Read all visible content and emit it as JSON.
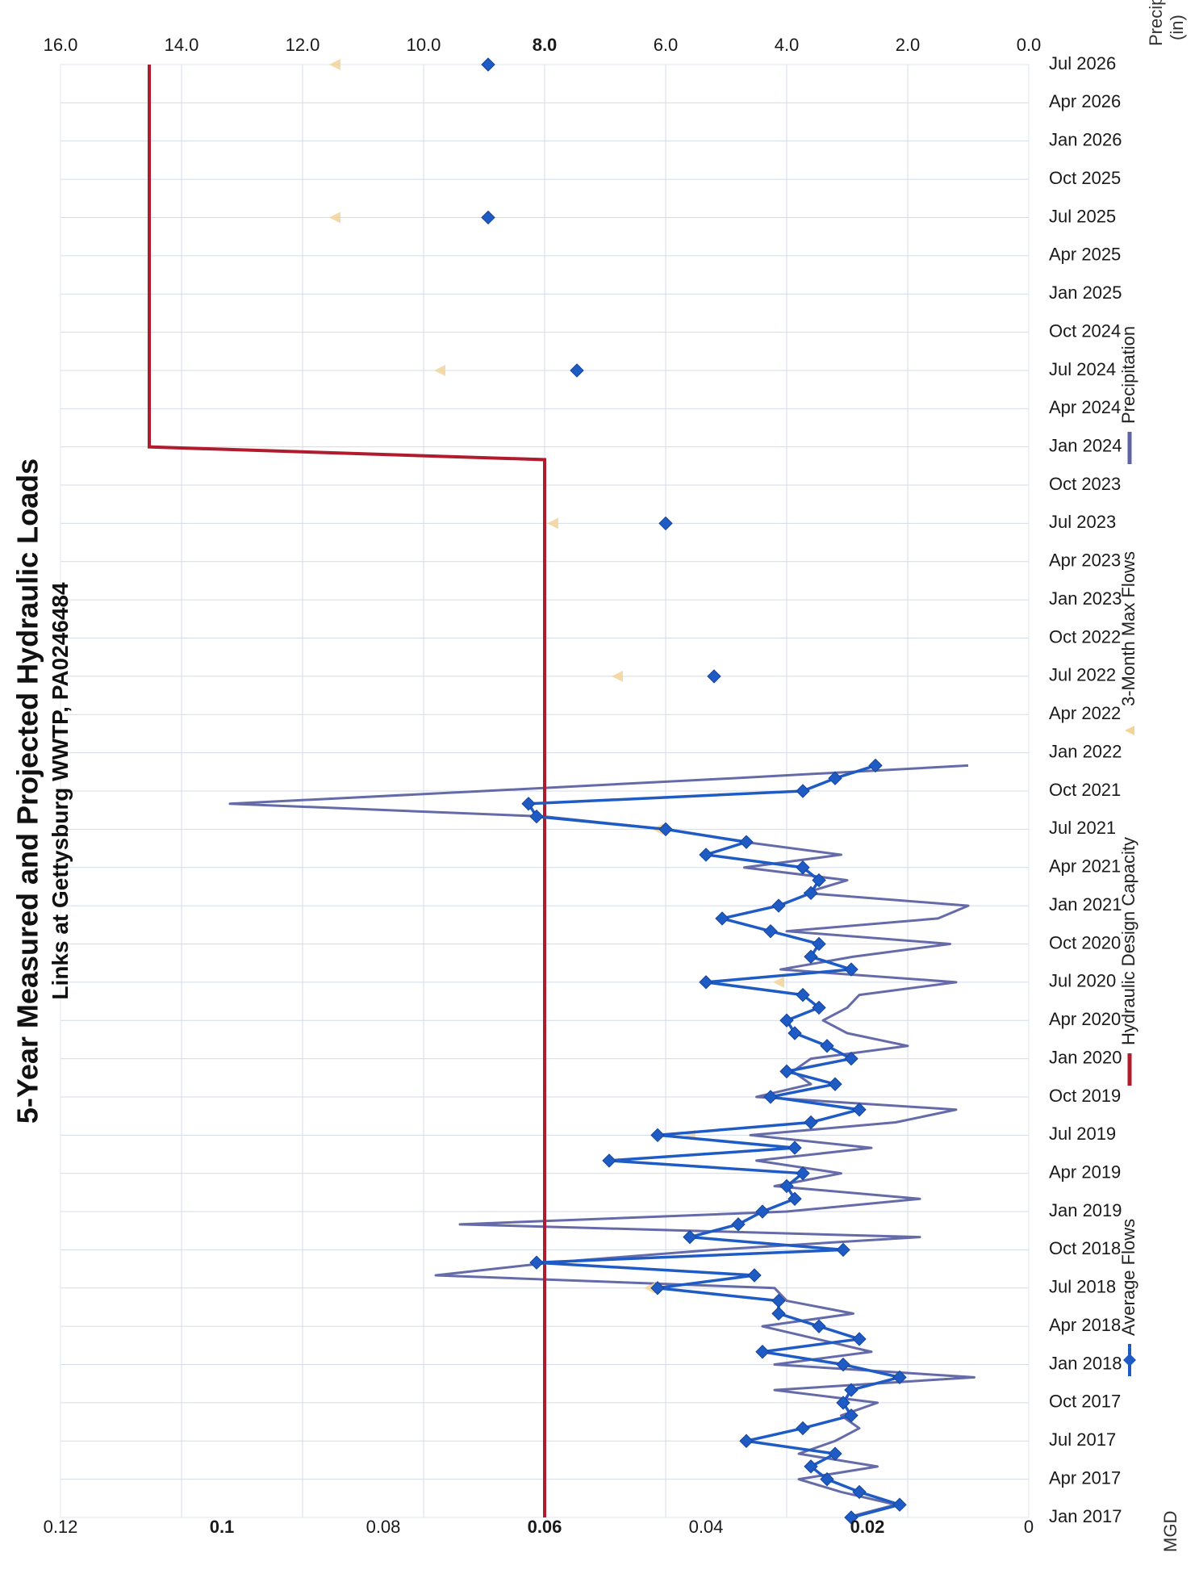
{
  "chart_data": {
    "type": "line",
    "title": "5-Year Measured and Projected Hydraulic Loads",
    "subtitle": "Links at Gettysburg WWTP, PA0246484",
    "orientation": "rotated 90° counter-clockwise",
    "x_axis": {
      "type": "date",
      "ticks": [
        "Jan 2017",
        "Apr 2017",
        "Jul 2017",
        "Oct 2017",
        "Jan 2018",
        "Apr 2018",
        "Jul 2018",
        "Oct 2018",
        "Jan 2019",
        "Apr 2019",
        "Jul 2019",
        "Oct 2019",
        "Jan 2020",
        "Apr 2020",
        "Jul 2020",
        "Oct 2020",
        "Jan 2021",
        "Apr 2021",
        "Jul 2021",
        "Oct 2021",
        "Jan 2022",
        "Apr 2022",
        "Jul 2022",
        "Oct 2022",
        "Jan 2023",
        "Apr 2023",
        "Jul 2023",
        "Oct 2023",
        "Jan 2024",
        "Apr 2024",
        "Jul 2024",
        "Oct 2024",
        "Jan 2025",
        "Apr 2025",
        "Jul 2025",
        "Oct 2025",
        "Jan 2026",
        "Apr 2026",
        "Jul 2026"
      ]
    },
    "y_axis_left": {
      "label": "MGD",
      "range": [
        0,
        0.12
      ],
      "ticks": [
        "0",
        "0.02",
        "0.04",
        "0.06",
        "0.08",
        "0.1",
        "0.12"
      ]
    },
    "y_axis_right": {
      "label_line1": "Precip",
      "label_line2": "(in)",
      "range": [
        0,
        16
      ],
      "ticks": [
        "0.0",
        "2.0",
        "4.0",
        "6.0",
        "8.0",
        "10.0",
        "12.0",
        "14.0",
        "16.0"
      ]
    },
    "grid": true,
    "legend_position": "right",
    "series": [
      {
        "name": "Average Flows",
        "color": "#1f5bc4",
        "marker": "diamond",
        "axis": "left",
        "x": [
          "2017-01",
          "2017-02",
          "2017-03",
          "2017-04",
          "2017-05",
          "2017-06",
          "2017-07",
          "2017-08",
          "2017-09",
          "2017-10",
          "2017-11",
          "2017-12",
          "2018-01",
          "2018-02",
          "2018-03",
          "2018-04",
          "2018-05",
          "2018-06",
          "2018-07",
          "2018-08",
          "2018-09",
          "2018-10",
          "2018-11",
          "2018-12",
          "2019-01",
          "2019-02",
          "2019-03",
          "2019-04",
          "2019-05",
          "2019-06",
          "2019-07",
          "2019-08",
          "2019-09",
          "2019-10",
          "2019-11",
          "2019-12",
          "2020-01",
          "2020-02",
          "2020-03",
          "2020-04",
          "2020-05",
          "2020-06",
          "2020-07",
          "2020-08",
          "2020-09",
          "2020-10",
          "2020-11",
          "2020-12",
          "2021-01",
          "2021-02",
          "2021-03",
          "2021-04",
          "2021-05",
          "2021-06",
          "2021-07",
          "2021-08",
          "2021-09",
          "2021-10",
          "2021-11",
          "2021-12",
          "2022-07",
          "2023-07",
          "2024-07",
          "2025-07",
          "2026-07"
        ],
        "values": [
          0.022,
          0.016,
          0.021,
          0.025,
          0.027,
          0.024,
          0.035,
          0.028,
          0.022,
          0.023,
          0.022,
          0.016,
          0.023,
          0.033,
          0.021,
          0.026,
          0.031,
          0.031,
          0.046,
          0.034,
          0.061,
          0.023,
          0.042,
          0.036,
          0.033,
          0.029,
          0.03,
          0.028,
          0.052,
          0.029,
          0.046,
          0.027,
          0.021,
          0.032,
          0.024,
          0.03,
          0.022,
          0.025,
          0.029,
          0.03,
          0.026,
          0.028,
          0.04,
          0.022,
          0.027,
          0.026,
          0.032,
          0.038,
          0.031,
          0.027,
          0.026,
          0.028,
          0.04,
          0.035,
          0.045,
          0.061,
          0.062,
          0.028,
          0.024,
          0.019,
          0.039,
          0.045,
          0.056,
          0.067,
          0.067
        ]
      },
      {
        "name": "Hydraulic Design Capacity",
        "color": "#b01c2e",
        "marker": "none",
        "axis": "left",
        "x": [
          "2017-01",
          "2023-12",
          "2024-01",
          "2026-07"
        ],
        "values": [
          0.06,
          0.06,
          0.109,
          0.109
        ]
      },
      {
        "name": "3-Month Max Flows",
        "color": "#f2d49a",
        "marker": "triangle",
        "axis": "left",
        "x": [
          "2018-07",
          "2019-07",
          "2020-07",
          "2021-07",
          "2022-07",
          "2023-07",
          "2024-07",
          "2025-07",
          "2026-07"
        ],
        "values": [
          0.047,
          0.042,
          0.031,
          0.046,
          0.051,
          0.059,
          0.073,
          0.086,
          0.086
        ]
      },
      {
        "name": "Precipitation",
        "color": "#5d63a4",
        "marker": "none",
        "axis": "right",
        "x": [
          "2017-01",
          "2017-02",
          "2017-03",
          "2017-04",
          "2017-05",
          "2017-06",
          "2017-07",
          "2017-08",
          "2017-09",
          "2017-10",
          "2017-11",
          "2017-12",
          "2018-01",
          "2018-02",
          "2018-03",
          "2018-04",
          "2018-05",
          "2018-06",
          "2018-07",
          "2018-08",
          "2018-09",
          "2018-10",
          "2018-11",
          "2018-12",
          "2019-01",
          "2019-02",
          "2019-03",
          "2019-04",
          "2019-05",
          "2019-06",
          "2019-07",
          "2019-08",
          "2019-09",
          "2019-10",
          "2019-11",
          "2019-12",
          "2020-01",
          "2020-02",
          "2020-03",
          "2020-04",
          "2020-05",
          "2020-06",
          "2020-07",
          "2020-08",
          "2020-09",
          "2020-10",
          "2020-11",
          "2020-12",
          "2021-01",
          "2021-02",
          "2021-03",
          "2021-04",
          "2021-05",
          "2021-06",
          "2021-07",
          "2021-08",
          "2021-09",
          "2021-10",
          "2021-11",
          "2021-12"
        ],
        "values": [
          3.0,
          2.2,
          3.1,
          3.8,
          2.5,
          3.8,
          3.2,
          2.8,
          3.1,
          2.5,
          4.2,
          0.9,
          4.2,
          2.6,
          3.5,
          4.4,
          2.9,
          4.0,
          4.2,
          9.8,
          7.9,
          5.2,
          1.8,
          9.4,
          4.0,
          1.8,
          4.2,
          3.1,
          4.5,
          2.6,
          4.6,
          2.2,
          1.2,
          4.5,
          3.6,
          3.9,
          3.6,
          2.0,
          3.0,
          3.4,
          3.0,
          2.8,
          1.2,
          4.1,
          2.9,
          1.3,
          4.0,
          1.5,
          1.0,
          3.7,
          3.0,
          4.7,
          3.1,
          4.7,
          6.0,
          8.0,
          13.2,
          9.0,
          4.9,
          1.0
        ]
      }
    ]
  },
  "legend": [
    {
      "label": "Average Flows",
      "color": "#1f5bc4",
      "kind": "line-diamond"
    },
    {
      "label": "Hydraulic Design Capacity",
      "color": "#b01c2e",
      "kind": "line"
    },
    {
      "label": "3-Month Max Flows",
      "color": "#f2d49a",
      "kind": "triangle"
    },
    {
      "label": "Precipitation",
      "color": "#5d63a4",
      "kind": "line"
    }
  ]
}
